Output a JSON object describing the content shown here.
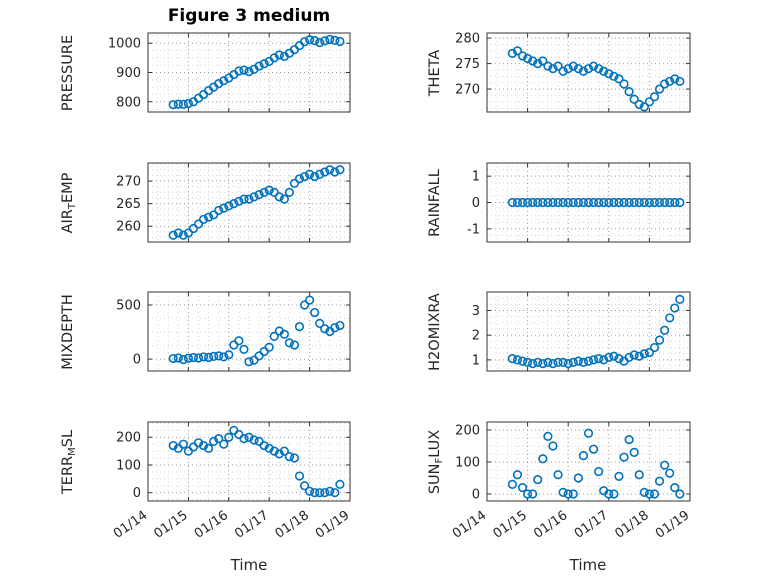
{
  "figure": {
    "background": "#ffffff",
    "marker_color": "#0072BD",
    "axis_color": "#333333",
    "grid_major_color": "#9e9e9e",
    "grid_minor_color": "#d6d6d6"
  },
  "chart_data": {
    "type": "scatter",
    "title": "Figure 3 medium",
    "xlabel": "Time",
    "marker": "o",
    "legend": "none",
    "grid": "on",
    "xlim": [
      0,
      5
    ],
    "x_tick_values": [
      0,
      1,
      2,
      3,
      4,
      5
    ],
    "x_tick_labels": [
      "01/14",
      "01/15",
      "01/16",
      "01/17",
      "01/18",
      "01/19"
    ],
    "x": [
      0.625,
      0.75,
      0.875,
      1,
      1.125,
      1.25,
      1.375,
      1.5,
      1.625,
      1.75,
      1.875,
      2,
      2.125,
      2.25,
      2.375,
      2.5,
      2.625,
      2.75,
      2.875,
      3,
      3.125,
      3.25,
      3.375,
      3.5,
      3.625,
      3.75,
      3.875,
      4,
      4.125,
      4.25,
      4.375,
      4.5,
      4.625,
      4.75
    ],
    "subplots": [
      {
        "name": "pressure",
        "ylabel": "PRESSURE",
        "row": 0,
        "col": 0,
        "ylim": [
          765,
          1035
        ],
        "yticks": [
          800,
          900,
          1000
        ],
        "values": [
          790,
          792,
          791,
          794,
          800,
          812,
          825,
          838,
          850,
          862,
          872,
          881,
          893,
          905,
          908,
          903,
          911,
          922,
          930,
          938,
          950,
          960,
          955,
          966,
          978,
          992,
          1005,
          1012,
          1009,
          1002,
          1008,
          1013,
          1010,
          1006
        ]
      },
      {
        "name": "theta",
        "ylabel": "THETA",
        "row": 0,
        "col": 1,
        "ylim": [
          265.5,
          281
        ],
        "yticks": [
          270,
          275,
          280
        ],
        "values": [
          277,
          277.5,
          276.5,
          276,
          275.5,
          275,
          275.5,
          274.5,
          274,
          274.5,
          273.5,
          274,
          274.5,
          274,
          273.5,
          274,
          274.5,
          274,
          273.5,
          273,
          272.5,
          272,
          271,
          269.5,
          268,
          267,
          266.5,
          267.5,
          268.5,
          270,
          271,
          271.5,
          272,
          271.5
        ]
      },
      {
        "name": "air-temp",
        "ylabel": "AIR_TEMP",
        "row": 1,
        "col": 0,
        "ylim": [
          256.5,
          274
        ],
        "yticks": [
          260,
          265,
          270
        ],
        "values": [
          258,
          258.5,
          258,
          258.5,
          259.5,
          260.5,
          261.5,
          262,
          262.5,
          263.5,
          264,
          264.5,
          265,
          265.5,
          266,
          266,
          266.5,
          267,
          267.5,
          268,
          267.5,
          266.5,
          266,
          267.5,
          269.5,
          270.5,
          271,
          271.5,
          271,
          271.5,
          272,
          272.5,
          272,
          272.5
        ]
      },
      {
        "name": "rainfall",
        "ylabel": "RAINFALL",
        "row": 1,
        "col": 1,
        "ylim": [
          -1.5,
          1.5
        ],
        "yticks": [
          -1,
          0,
          1
        ],
        "values": [
          0,
          0,
          0,
          0,
          0,
          0,
          0,
          0,
          0,
          0,
          0,
          0,
          0,
          0,
          0,
          0,
          0,
          0,
          0,
          0,
          0,
          0,
          0,
          0,
          0,
          0,
          0,
          0,
          0,
          0,
          0,
          0,
          0,
          0
        ]
      },
      {
        "name": "mixdepth",
        "ylabel": "MIXDEPTH",
        "row": 2,
        "col": 0,
        "ylim": [
          -110,
          620
        ],
        "yticks": [
          0,
          500
        ],
        "values": [
          5,
          10,
          -5,
          8,
          15,
          10,
          20,
          15,
          25,
          30,
          20,
          40,
          130,
          170,
          90,
          -25,
          -10,
          30,
          70,
          110,
          210,
          260,
          230,
          150,
          130,
          300,
          500,
          545,
          430,
          330,
          280,
          255,
          290,
          310
        ]
      },
      {
        "name": "h2omixra",
        "ylabel": "H2OMIXRA",
        "row": 2,
        "col": 1,
        "ylim": [
          0.55,
          3.75
        ],
        "yticks": [
          1,
          2,
          3
        ],
        "values": [
          1.05,
          1,
          0.95,
          0.9,
          0.85,
          0.9,
          0.85,
          0.9,
          0.85,
          0.9,
          0.9,
          0.85,
          0.9,
          0.95,
          0.9,
          0.95,
          1,
          1.05,
          1,
          1.1,
          1.15,
          1.05,
          0.95,
          1.1,
          1.2,
          1.15,
          1.25,
          1.3,
          1.5,
          1.8,
          2.2,
          2.7,
          3.1,
          3.45
        ]
      },
      {
        "name": "terr-msl",
        "ylabel": "TERR_MSL",
        "row": 3,
        "col": 0,
        "ylim": [
          -30,
          255
        ],
        "yticks": [
          0,
          100,
          200
        ],
        "values": [
          170,
          160,
          175,
          150,
          165,
          180,
          170,
          160,
          185,
          195,
          175,
          200,
          225,
          210,
          195,
          200,
          190,
          185,
          170,
          160,
          150,
          140,
          150,
          130,
          125,
          60,
          25,
          5,
          0,
          0,
          0,
          5,
          0,
          30
        ]
      },
      {
        "name": "sun-flux",
        "ylabel": "SUN_FLUX",
        "row": 3,
        "col": 1,
        "ylim": [
          -22,
          225
        ],
        "yticks": [
          0,
          100,
          200
        ],
        "values": [
          30,
          60,
          20,
          0,
          0,
          45,
          110,
          180,
          150,
          60,
          5,
          0,
          0,
          50,
          120,
          190,
          140,
          70,
          10,
          0,
          0,
          55,
          115,
          170,
          130,
          60,
          5,
          0,
          0,
          40,
          90,
          65,
          20,
          0
        ]
      }
    ]
  }
}
